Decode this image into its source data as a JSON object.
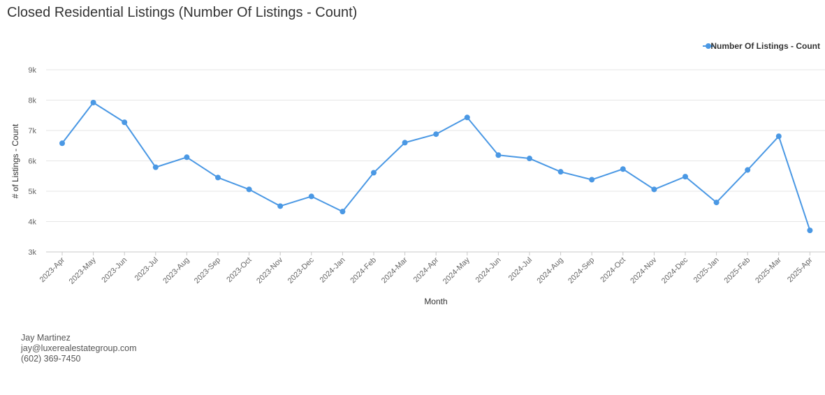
{
  "chart_data": {
    "type": "line",
    "title": "Closed Residential Listings (Number Of Listings - Count)",
    "xlabel": "Month",
    "ylabel": "# of Listings - Count",
    "ylim": [
      3000,
      9000
    ],
    "yticks": [
      {
        "value": 3000,
        "label": "3k"
      },
      {
        "value": 4000,
        "label": "4k"
      },
      {
        "value": 5000,
        "label": "5k"
      },
      {
        "value": 6000,
        "label": "6k"
      },
      {
        "value": 7000,
        "label": "7k"
      },
      {
        "value": 8000,
        "label": "8k"
      },
      {
        "value": 9000,
        "label": "9k"
      }
    ],
    "grid": true,
    "legend": "top-right",
    "categories": [
      "2023-Apr",
      "2023-May",
      "2023-Jun",
      "2023-Jul",
      "2023-Aug",
      "2023-Sep",
      "2023-Oct",
      "2023-Nov",
      "2023-Dec",
      "2024-Jan",
      "2024-Feb",
      "2024-Mar",
      "2024-Apr",
      "2024-May",
      "2024-Jun",
      "2024-Jul",
      "2024-Aug",
      "2024-Sep",
      "2024-Oct",
      "2024-Nov",
      "2024-Dec",
      "2025-Jan",
      "2025-Feb",
      "2025-Mar",
      "2025-Apr"
    ],
    "series": [
      {
        "name": "Number Of Listings - Count",
        "color": "#4a98e4",
        "values": [
          6580,
          7920,
          7270,
          5790,
          6120,
          5450,
          5060,
          4510,
          4830,
          4330,
          5610,
          6600,
          6880,
          7430,
          6190,
          6080,
          5640,
          5380,
          5730,
          5060,
          5480,
          4630,
          5700,
          6810,
          3710
        ]
      }
    ]
  },
  "contact": {
    "name": "Jay Martinez",
    "email": "jay@luxerealestategroup.com",
    "phone": "(602) 369-7450"
  }
}
